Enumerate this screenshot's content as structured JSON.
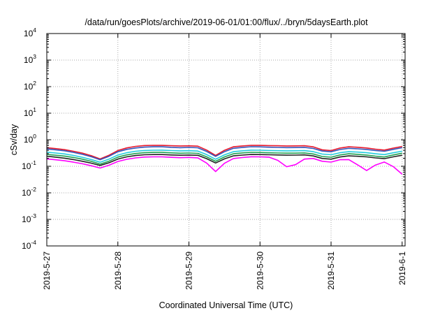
{
  "chart_data": {
    "type": "line",
    "title": "/data/run/goesPlots/archive/2019-06-01/01:00/flux/../bryn/5daysEarth.plot",
    "xlabel": "Coordinated Universal Time (UTC)",
    "ylabel": "cSv/day",
    "yscale": "log",
    "ylim": [
      0.0001,
      10000
    ],
    "yticks": [
      {
        "base": "10",
        "exp": "-4"
      },
      {
        "base": "10",
        "exp": "-3"
      },
      {
        "base": "10",
        "exp": "-2"
      },
      {
        "base": "10",
        "exp": "-1"
      },
      {
        "base": "10",
        "exp": "0"
      },
      {
        "base": "10",
        "exp": "1"
      },
      {
        "base": "10",
        "exp": "2"
      },
      {
        "base": "10",
        "exp": "3"
      },
      {
        "base": "10",
        "exp": "4"
      }
    ],
    "xlim": [
      "2019-05-27",
      "2019-06-01 01:00"
    ],
    "xticks": [
      "2019-5-27",
      "2019-5-28",
      "2019-5-29",
      "2019-5-30",
      "2019-5-31",
      "2019-6-1"
    ],
    "grid": true,
    "legend": "none",
    "series": [
      {
        "color": "#e8192c",
        "base": 0.55,
        "values": [
          0.5,
          0.42,
          0.3,
          0.17,
          0.45,
          0.6,
          0.62,
          0.58,
          0.6,
          0.25,
          0.55,
          0.62,
          0.6,
          0.58,
          0.6,
          0.35,
          0.55,
          0.5,
          0.4,
          0.56
        ]
      },
      {
        "color": "#3355bb",
        "base": 0.48,
        "values": [
          0.45,
          0.38,
          0.27,
          0.16,
          0.4,
          0.52,
          0.55,
          0.5,
          0.52,
          0.23,
          0.48,
          0.55,
          0.52,
          0.5,
          0.52,
          0.32,
          0.48,
          0.44,
          0.36,
          0.5
        ]
      },
      {
        "color": "#22ccdd",
        "base": 0.36,
        "values": [
          0.34,
          0.29,
          0.21,
          0.13,
          0.3,
          0.39,
          0.41,
          0.38,
          0.39,
          0.18,
          0.36,
          0.41,
          0.39,
          0.38,
          0.39,
          0.25,
          0.36,
          0.33,
          0.27,
          0.37
        ]
      },
      {
        "color": "#20a050",
        "base": 0.3,
        "values": [
          0.28,
          0.24,
          0.18,
          0.11,
          0.25,
          0.32,
          0.34,
          0.31,
          0.32,
          0.15,
          0.3,
          0.34,
          0.32,
          0.31,
          0.32,
          0.2,
          0.3,
          0.27,
          0.22,
          0.31
        ]
      },
      {
        "color": "#222222",
        "base": 0.25,
        "values": [
          0.24,
          0.2,
          0.15,
          0.1,
          0.21,
          0.27,
          0.28,
          0.26,
          0.27,
          0.13,
          0.25,
          0.28,
          0.27,
          0.26,
          0.27,
          0.17,
          0.25,
          0.23,
          0.19,
          0.26
        ]
      },
      {
        "color": "#ff00ff",
        "base": 0.2,
        "values": [
          0.19,
          0.16,
          0.12,
          0.08,
          0.17,
          0.22,
          0.23,
          0.21,
          0.22,
          0.06,
          0.2,
          0.23,
          0.22,
          0.07,
          0.22,
          0.13,
          0.2,
          0.06,
          0.15,
          0.05
        ]
      }
    ]
  }
}
